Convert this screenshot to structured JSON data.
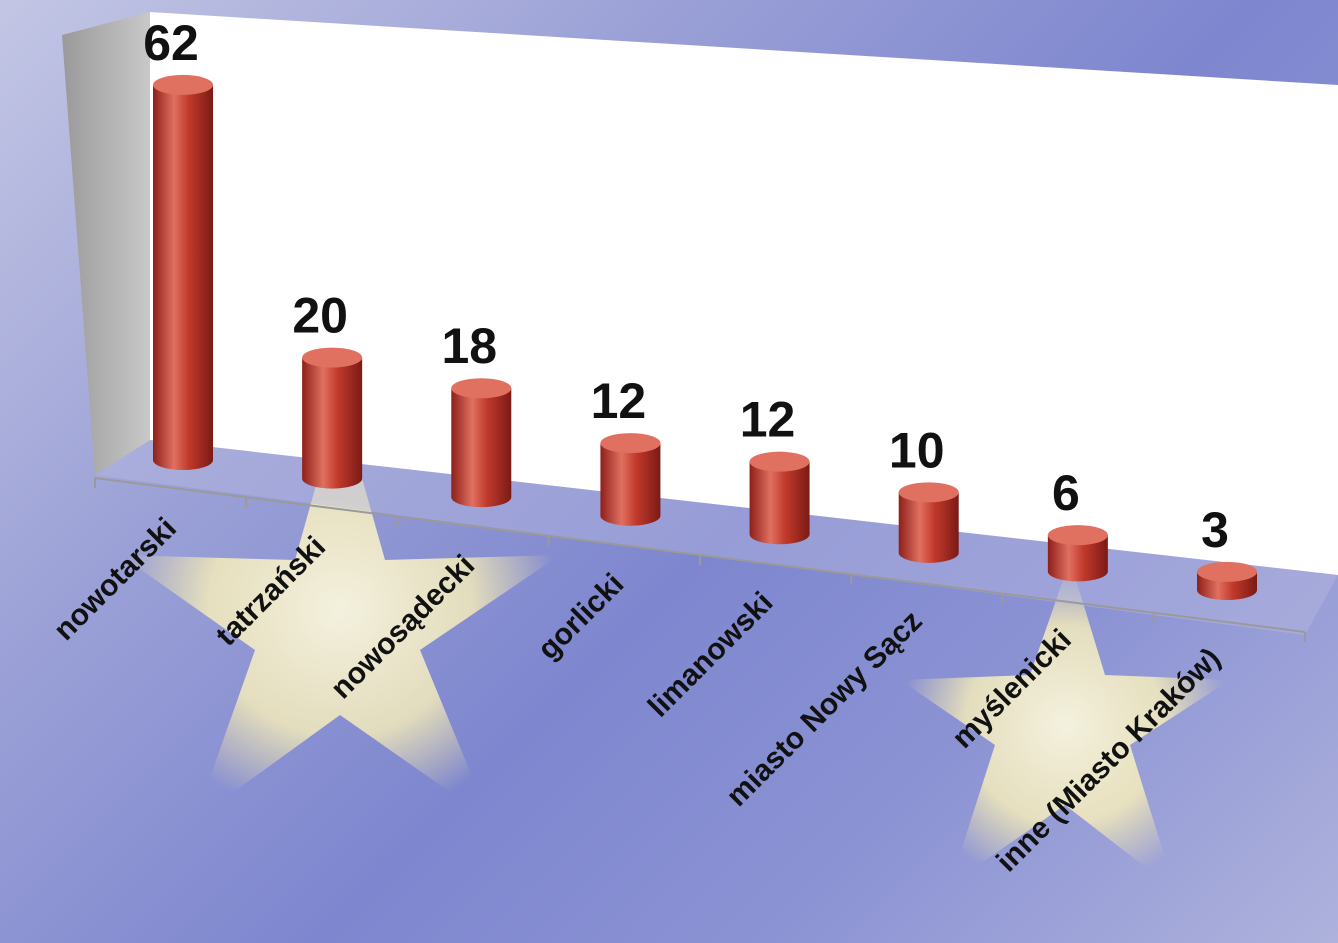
{
  "chart_data": {
    "type": "bar",
    "style": "3d-cylinder",
    "categories": [
      "nowotarski",
      "tatrzański",
      "nowosądecki",
      "gorlicki",
      "limanowski",
      "miasto Nowy Sącz",
      "myślenicki",
      "inne (Miasto Kraków)"
    ],
    "values": [
      62,
      20,
      18,
      12,
      12,
      10,
      6,
      3
    ],
    "title": "",
    "xlabel": "",
    "ylabel": "",
    "data_labels": true,
    "grid": false,
    "legend": "none",
    "colors": {
      "bar": "#c0392b",
      "bar_dark": "#8e1f1a",
      "bar_light": "#e07060",
      "back_wall": "#ffffff",
      "side_wall": "#a9a9a9",
      "label": "#111111",
      "star": "#fff7c8"
    }
  }
}
